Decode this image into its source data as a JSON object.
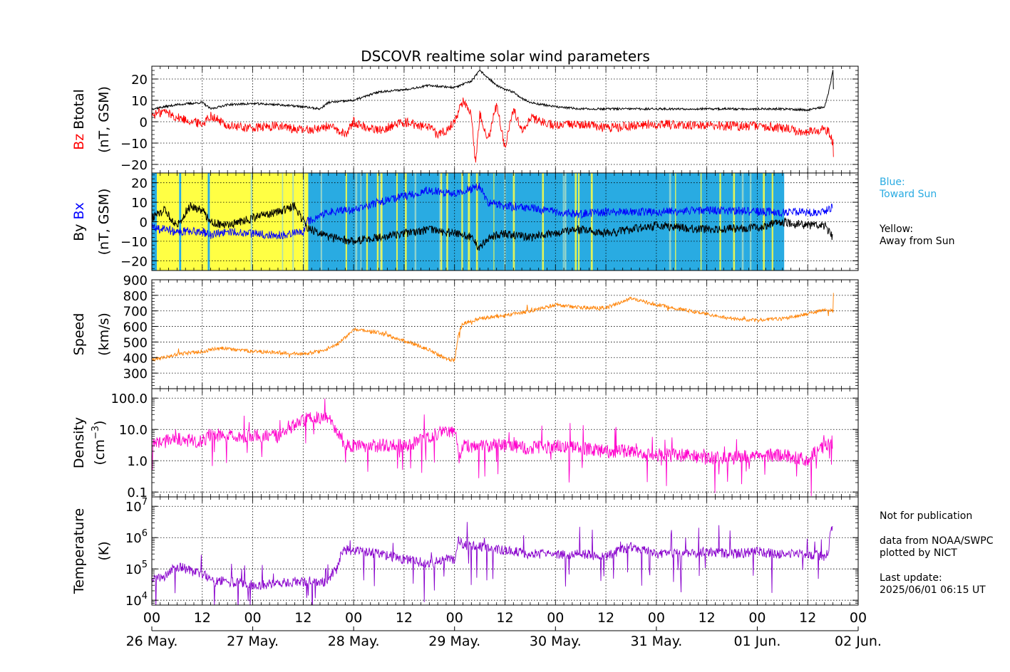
{
  "title": "DSCOVR realtime solar wind parameters",
  "colors": {
    "bz": "#ff0000",
    "btotal": "#000000",
    "bx": "#0000ff",
    "by": "#000000",
    "speed": "#ff8000",
    "density": "#ff00cc",
    "temperature": "#8800cc",
    "toward": "#29abe2",
    "away": "#ffff44"
  },
  "side_notes": {
    "blue_label": "Blue:",
    "toward_sun": "Toward Sun",
    "yellow_label": "Yellow:",
    "away_from_sun": "Away from Sun",
    "not_for_publication": "Not for publication",
    "data_source": "data from NOAA/SWPC",
    "plotted_by": "plotted by NICT",
    "last_update_label": "Last update:",
    "last_update": "2025/06/01 06:15 UT"
  },
  "chart_data": [
    {
      "type": "line",
      "panel": "magnetic_total",
      "ylabel": [
        "Bz",
        "Btotal",
        "(nT, GSM)"
      ],
      "ylim": [
        -24,
        26
      ],
      "yticks": [
        -20,
        -10,
        0,
        10,
        20
      ],
      "ytick_labels": [
        "−20",
        "−10",
        "0",
        "10",
        "20"
      ],
      "grid": true,
      "series": [
        {
          "name": "Btotal",
          "color": "#000000",
          "x": [
            0,
            6,
            12,
            14,
            18,
            24,
            30,
            36,
            40,
            42,
            48,
            54,
            60,
            66,
            72,
            76,
            78,
            82,
            84,
            86,
            88,
            90,
            96,
            102,
            108,
            120,
            132,
            144,
            150,
            156,
            160,
            161,
            162,
            162.2
          ],
          "y": [
            6,
            8,
            9,
            6,
            8,
            8.5,
            8,
            7,
            6,
            9,
            10,
            14,
            15,
            17,
            16,
            19,
            24,
            17,
            15,
            14,
            11,
            9,
            7,
            6,
            6,
            6,
            6,
            6,
            6,
            5.5,
            7,
            14,
            24,
            10
          ]
        },
        {
          "name": "Bz",
          "color": "#ff0000",
          "x": [
            0,
            3,
            6,
            12,
            14,
            18,
            24,
            30,
            36,
            40,
            42,
            46,
            48,
            50,
            54,
            60,
            66,
            68,
            70,
            72,
            74,
            76,
            77,
            78,
            80,
            82,
            84,
            86,
            88,
            90,
            96,
            102,
            108,
            114,
            120,
            132,
            144,
            150,
            156,
            160,
            161,
            162,
            162.2
          ],
          "y": [
            3,
            5,
            2,
            -1,
            3,
            -2,
            -3,
            -2,
            -4,
            -3,
            -2,
            -6,
            0,
            -2,
            -4,
            0,
            -3,
            -6,
            -4,
            0,
            10,
            4,
            -20,
            4,
            -8,
            8,
            -12,
            6,
            -4,
            2,
            -2,
            -1,
            -3,
            -2,
            -1,
            -2,
            -2,
            -3,
            -5,
            -3,
            -5,
            -10,
            -18
          ]
        }
      ]
    },
    {
      "type": "line",
      "panel": "magnetic_components",
      "ylabel": [
        "By",
        "Bx",
        "(nT, GSM)"
      ],
      "ylim": [
        -25,
        25
      ],
      "yticks": [
        -20,
        -10,
        0,
        10,
        20
      ],
      "ytick_labels": [
        "−20",
        "−10",
        "0",
        "10",
        "20"
      ],
      "grid": true,
      "sector_bands": [
        {
          "start": 0,
          "end": 1.2,
          "sector": "toward"
        },
        {
          "start": 1.2,
          "end": 6.5,
          "sector": "away"
        },
        {
          "start": 6.5,
          "end": 7.0,
          "sector": "toward"
        },
        {
          "start": 7.0,
          "end": 13.3,
          "sector": "away"
        },
        {
          "start": 13.3,
          "end": 13.8,
          "sector": "toward"
        },
        {
          "start": 13.8,
          "end": 37.2,
          "sector": "away"
        },
        {
          "start": 37.2,
          "end": 150.4,
          "sector": "toward"
        }
      ],
      "series": [
        {
          "name": "Bx",
          "color": "#0000ff",
          "x": [
            0,
            6,
            12,
            14,
            18,
            24,
            30,
            36,
            37,
            40,
            42,
            48,
            54,
            60,
            66,
            72,
            76,
            78,
            80,
            84,
            90,
            96,
            102,
            108,
            120,
            132,
            144,
            150,
            156,
            160,
            162
          ],
          "y": [
            -3,
            -5,
            -5,
            -7,
            -5,
            -6,
            -7,
            -5,
            0,
            3,
            5,
            6,
            10,
            13,
            16,
            14,
            17,
            18,
            10,
            8,
            7,
            5,
            4,
            5,
            5,
            6,
            5,
            5,
            5,
            5,
            8
          ]
        },
        {
          "name": "By",
          "color": "#000000",
          "x": [
            0,
            3,
            6,
            9,
            12,
            14,
            18,
            24,
            30,
            34,
            37,
            40,
            42,
            48,
            54,
            60,
            66,
            72,
            76,
            78,
            80,
            84,
            90,
            96,
            102,
            108,
            120,
            132,
            144,
            150,
            156,
            160,
            162
          ],
          "y": [
            2,
            6,
            -2,
            8,
            6,
            0,
            -2,
            2,
            5,
            8,
            -3,
            -6,
            -8,
            -10,
            -8,
            -6,
            -4,
            -6,
            -8,
            -14,
            -8,
            -6,
            -8,
            -6,
            -4,
            -6,
            -2,
            -4,
            -3,
            0,
            -2,
            -2,
            -8
          ]
        }
      ]
    },
    {
      "type": "line",
      "panel": "speed",
      "ylabel": [
        "Speed",
        "(km/s)"
      ],
      "ylim": [
        200,
        900
      ],
      "yticks": [
        300,
        400,
        500,
        600,
        700,
        800,
        900
      ],
      "ytick_labels": [
        "300",
        "400",
        "500",
        "600",
        "700",
        "800",
        "900"
      ],
      "grid": true,
      "series": [
        {
          "name": "Speed",
          "color": "#ff8000",
          "x": [
            0,
            6,
            12,
            16,
            24,
            36,
            40,
            44,
            48,
            54,
            60,
            66,
            70,
            72,
            73,
            74,
            78,
            84,
            90,
            96,
            102,
            108,
            114,
            120,
            126,
            132,
            138,
            144,
            150,
            156,
            160,
            162,
            162.2
          ],
          "y": [
            385,
            420,
            440,
            460,
            440,
            425,
            440,
            480,
            580,
            560,
            510,
            450,
            390,
            380,
            560,
            620,
            650,
            670,
            700,
            740,
            720,
            720,
            780,
            740,
            710,
            680,
            650,
            640,
            650,
            680,
            710,
            700,
            900
          ]
        }
      ]
    },
    {
      "type": "line",
      "panel": "density",
      "ylabel": [
        "Density",
        "(cm",
        "−3",
        ")"
      ],
      "yscale": "log",
      "ylim": [
        0.07,
        200
      ],
      "yticks": [
        0.1,
        1.0,
        10.0,
        100.0
      ],
      "ytick_labels": [
        "0.1",
        "1.0",
        "10.0",
        "100.0"
      ],
      "grid": true,
      "series": [
        {
          "name": "Density",
          "color": "#ff00cc",
          "x": [
            0,
            6,
            12,
            14,
            18,
            24,
            30,
            32,
            36,
            40,
            42,
            44,
            46,
            48,
            54,
            60,
            66,
            70,
            72,
            73,
            74,
            78,
            84,
            90,
            96,
            102,
            108,
            114,
            120,
            126,
            132,
            138,
            144,
            150,
            156,
            160,
            162
          ],
          "y": [
            3,
            5,
            4,
            7,
            6,
            6,
            6,
            8,
            20,
            25,
            25,
            8,
            3,
            3,
            3,
            3,
            5,
            10,
            8,
            1,
            3,
            3,
            3,
            2.5,
            3,
            2.5,
            2,
            2,
            1.5,
            1.5,
            1.2,
            1.2,
            1.5,
            1.5,
            1,
            3,
            4
          ]
        }
      ]
    },
    {
      "type": "line",
      "panel": "temperature",
      "ylabel": [
        "Temperature",
        "(K)"
      ],
      "yscale": "log",
      "ylim": [
        7000,
        20000000
      ],
      "yticks": [
        10000,
        100000,
        1000000,
        10000000
      ],
      "ytick_labels": [
        [
          "10",
          "4"
        ],
        [
          "10",
          "5"
        ],
        [
          "10",
          "6"
        ],
        [
          "10",
          "7"
        ]
      ],
      "grid": true,
      "series": [
        {
          "name": "Temperature",
          "color": "#8800cc",
          "x": [
            0,
            3,
            6,
            10,
            12,
            14,
            18,
            24,
            30,
            36,
            40,
            42,
            44,
            46,
            48,
            54,
            60,
            66,
            70,
            72,
            73,
            74,
            78,
            84,
            90,
            96,
            102,
            108,
            114,
            120,
            126,
            132,
            138,
            144,
            150,
            156,
            160,
            161,
            162
          ],
          "y": [
            50000,
            60000,
            120000,
            80000,
            70000,
            40000,
            40000,
            30000,
            35000,
            40000,
            40000,
            40000,
            100000,
            400000,
            400000,
            300000,
            200000,
            150000,
            200000,
            200000,
            800000,
            600000,
            500000,
            400000,
            300000,
            300000,
            300000,
            250000,
            500000,
            300000,
            300000,
            350000,
            300000,
            350000,
            300000,
            300000,
            250000,
            350000,
            2500000
          ]
        }
      ]
    },
    {
      "type": "table",
      "panel": "time_axis",
      "xlim_hours": [
        0,
        168
      ],
      "hour_ticks": [
        0,
        12,
        24,
        36,
        48,
        60,
        72,
        84,
        96,
        108,
        120,
        132,
        144,
        156,
        168
      ],
      "hour_labels": [
        "00",
        "12",
        "00",
        "12",
        "00",
        "12",
        "00",
        "12",
        "00",
        "12",
        "00",
        "12",
        "00",
        "12",
        "00"
      ],
      "date_ticks": [
        0,
        24,
        48,
        72,
        96,
        120,
        144,
        168
      ],
      "date_labels": [
        "26 May.",
        "27 May.",
        "28 May.",
        "29 May.",
        "30 May.",
        "31 May.",
        "01 Jun.",
        "02 Jun."
      ]
    }
  ]
}
